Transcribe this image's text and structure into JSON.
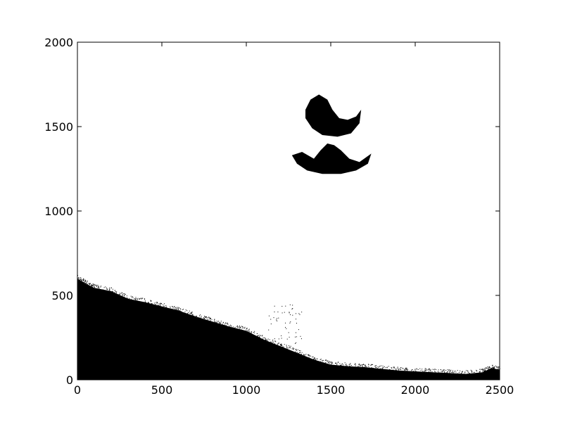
{
  "chart_data": {
    "type": "heatmap",
    "title": "",
    "xlabel": "",
    "ylabel": "",
    "xlim": [
      0,
      2500
    ],
    "ylim": [
      0,
      2000
    ],
    "grid": false,
    "x_ticks": [
      {
        "value": 0,
        "label": "0"
      },
      {
        "value": 500,
        "label": "500"
      },
      {
        "value": 1000,
        "label": "1000"
      },
      {
        "value": 1500,
        "label": "1500"
      },
      {
        "value": 2000,
        "label": "2000"
      },
      {
        "value": 2500,
        "label": "2500"
      }
    ],
    "y_ticks": [
      {
        "value": 0,
        "label": "0"
      },
      {
        "value": 500,
        "label": "500"
      },
      {
        "value": 1000,
        "label": "1000"
      },
      {
        "value": 1500,
        "label": "1500"
      },
      {
        "value": 2000,
        "label": "2000"
      }
    ],
    "colors": {
      "foreground": "#000000",
      "background": "#ffffff"
    },
    "regions": [
      {
        "name": "ground-mass",
        "boundary": [
          [
            0,
            600
          ],
          [
            50,
            570
          ],
          [
            100,
            545
          ],
          [
            200,
            525
          ],
          [
            300,
            480
          ],
          [
            400,
            460
          ],
          [
            500,
            435
          ],
          [
            600,
            410
          ],
          [
            700,
            375
          ],
          [
            800,
            345
          ],
          [
            900,
            315
          ],
          [
            1000,
            290
          ],
          [
            1100,
            240
          ],
          [
            1200,
            200
          ],
          [
            1300,
            160
          ],
          [
            1400,
            120
          ],
          [
            1500,
            90
          ],
          [
            1600,
            80
          ],
          [
            1700,
            75
          ],
          [
            1800,
            65
          ],
          [
            1900,
            55
          ],
          [
            2000,
            50
          ],
          [
            2100,
            45
          ],
          [
            2200,
            40
          ],
          [
            2300,
            35
          ],
          [
            2400,
            45
          ],
          [
            2450,
            70
          ],
          [
            2500,
            60
          ]
        ]
      },
      {
        "name": "upper-crescent",
        "boundary": [
          [
            1350,
            1600
          ],
          [
            1380,
            1660
          ],
          [
            1430,
            1690
          ],
          [
            1480,
            1660
          ],
          [
            1510,
            1600
          ],
          [
            1550,
            1550
          ],
          [
            1600,
            1540
          ],
          [
            1650,
            1560
          ],
          [
            1680,
            1600
          ],
          [
            1670,
            1520
          ],
          [
            1620,
            1460
          ],
          [
            1540,
            1440
          ],
          [
            1450,
            1450
          ],
          [
            1390,
            1490
          ],
          [
            1350,
            1550
          ]
        ]
      },
      {
        "name": "lower-arc",
        "boundary": [
          [
            1270,
            1330
          ],
          [
            1330,
            1350
          ],
          [
            1400,
            1310
          ],
          [
            1440,
            1360
          ],
          [
            1480,
            1400
          ],
          [
            1520,
            1390
          ],
          [
            1560,
            1360
          ],
          [
            1610,
            1310
          ],
          [
            1670,
            1290
          ],
          [
            1740,
            1340
          ],
          [
            1720,
            1280
          ],
          [
            1650,
            1240
          ],
          [
            1560,
            1220
          ],
          [
            1450,
            1220
          ],
          [
            1360,
            1240
          ],
          [
            1300,
            1280
          ]
        ]
      }
    ]
  }
}
